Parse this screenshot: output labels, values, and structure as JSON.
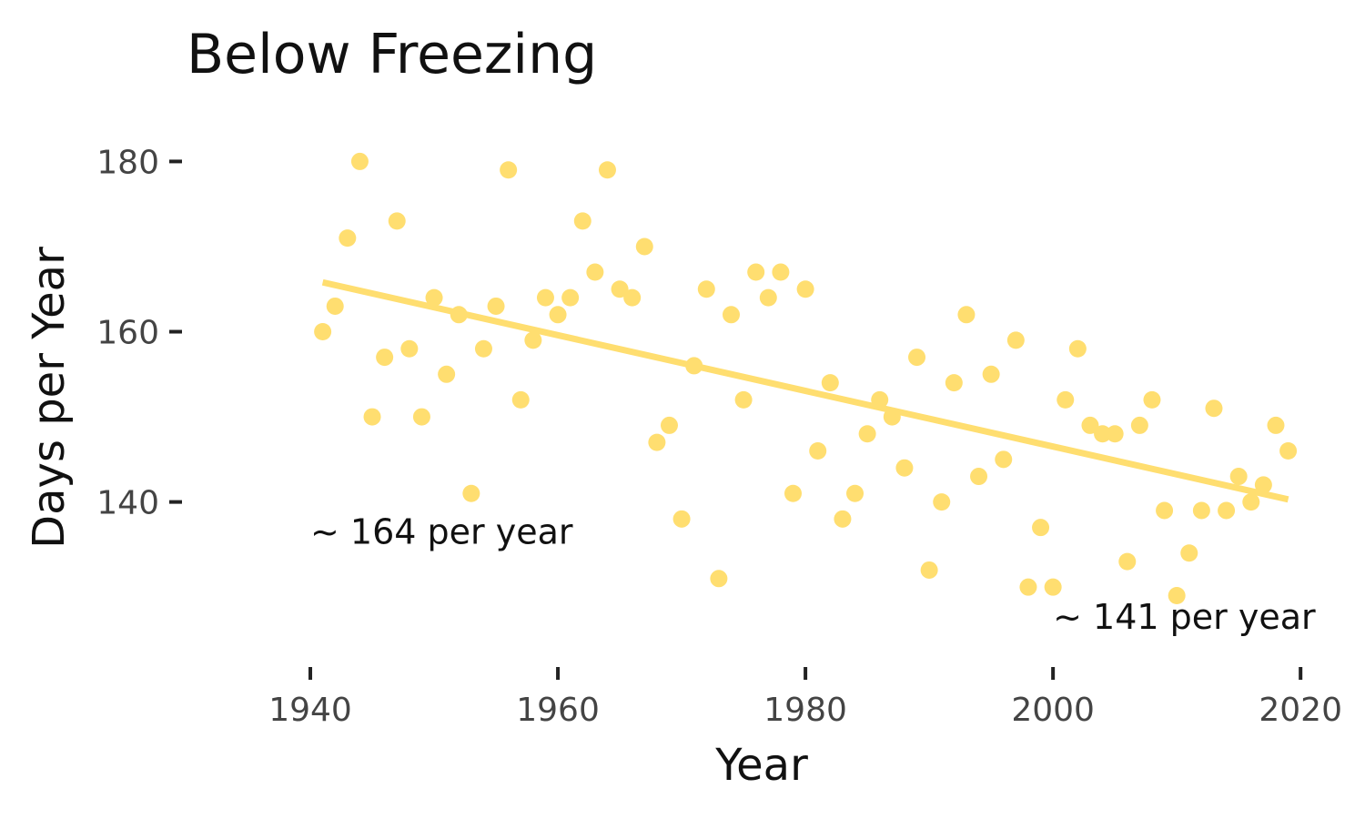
{
  "chart_data": {
    "type": "scatter",
    "title": "Below Freezing",
    "xlabel": "Year",
    "ylabel": "Days per Year",
    "xlim": [
      1930,
      2023
    ],
    "ylim": [
      122,
      184
    ],
    "x_ticks": [
      1940,
      1960,
      1980,
      2000,
      2020
    ],
    "y_ticks": [
      140,
      160,
      180
    ],
    "grid": false,
    "point_color": "#FFDE70",
    "trend_color": "#FFDE70",
    "series": [
      {
        "x": [
          1941,
          1942,
          1943,
          1944,
          1945,
          1946,
          1947,
          1948,
          1949,
          1950,
          1951,
          1952,
          1953,
          1954,
          1955,
          1956,
          1957,
          1958,
          1959,
          1960,
          1961,
          1962,
          1963,
          1964,
          1965,
          1966,
          1967,
          1968,
          1969,
          1970,
          1971,
          1972,
          1973,
          1974,
          1975,
          1976,
          1977,
          1978,
          1979,
          1980,
          1981,
          1982,
          1983,
          1984,
          1985,
          1986,
          1987,
          1988,
          1989,
          1990,
          1991,
          1992,
          1993,
          1994,
          1995,
          1996,
          1997,
          1998,
          1999,
          2000,
          2001,
          2002,
          2003,
          2004,
          2005,
          2006,
          2007,
          2008,
          2009,
          2010,
          2011,
          2012,
          2013,
          2014,
          2015,
          2016,
          2017,
          2018,
          2019
        ],
        "values": [
          160,
          163,
          171,
          180,
          150,
          157,
          173,
          158,
          150,
          164,
          155,
          162,
          141,
          158,
          163,
          179,
          152,
          159,
          164,
          162,
          164,
          173,
          167,
          179,
          165,
          164,
          170,
          147,
          149,
          138,
          156,
          165,
          131,
          162,
          152,
          167,
          164,
          167,
          141,
          165,
          146,
          154,
          138,
          141,
          148,
          152,
          150,
          144,
          157,
          132,
          140,
          154,
          162,
          143,
          155,
          145,
          159,
          130,
          137,
          130,
          152,
          158,
          149,
          148,
          148,
          133,
          149,
          152,
          139,
          129,
          134,
          139,
          151,
          139,
          143,
          140,
          142,
          149,
          146
        ]
      }
    ],
    "trend_line": {
      "x": [
        1941,
        2019
      ],
      "y": [
        165.8,
        140.3
      ]
    },
    "annotations": [
      {
        "text": "~ 164 per year",
        "x": 1940,
        "y": 135.1
      },
      {
        "text": "~ 141 per year",
        "x": 2000,
        "y": 125.1
      }
    ]
  }
}
